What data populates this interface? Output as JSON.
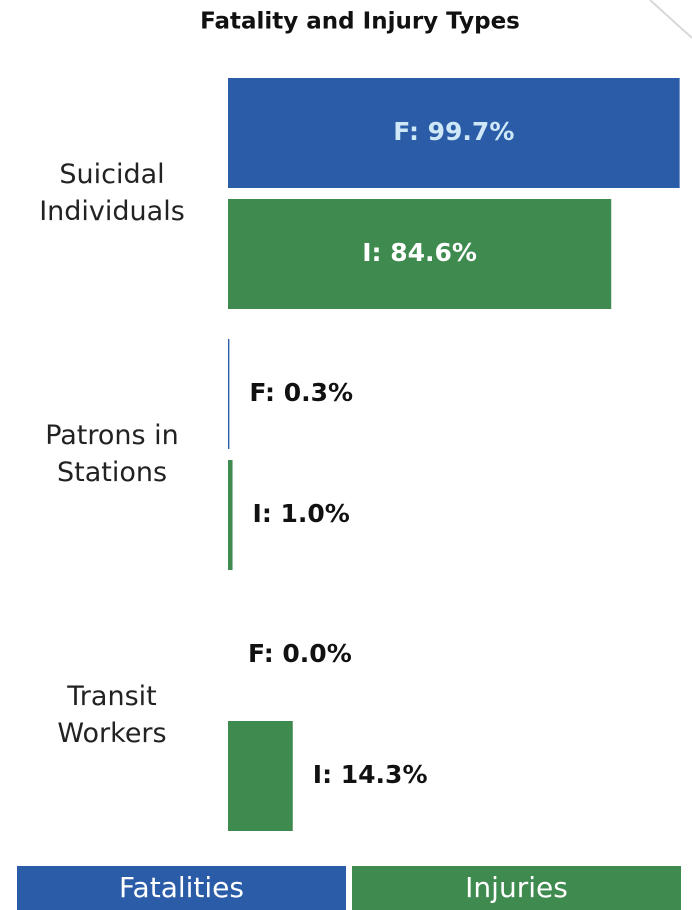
{
  "chart_data": {
    "type": "bar",
    "orientation": "horizontal",
    "title": "Fatality and Injury Types",
    "categories": [
      "Suicidal Individuals",
      "Patrons in Stations",
      "Transit Workers"
    ],
    "series": [
      {
        "name": "Fatalities",
        "color": "#2b5ca8",
        "label_color": "#cfe8f7",
        "values": [
          99.7,
          0.3,
          0.0
        ],
        "value_labels": [
          "F: 99.7%",
          "F: 0.3%",
          "F: 0.0%"
        ]
      },
      {
        "name": "Injuries",
        "color": "#3e8a4f",
        "label_color": "#ffffff",
        "values": [
          84.6,
          1.0,
          14.3
        ],
        "value_labels": [
          "I: 84.6%",
          "I: 1.0%",
          "I: 14.3%"
        ]
      }
    ],
    "xlim": [
      0,
      100
    ]
  }
}
